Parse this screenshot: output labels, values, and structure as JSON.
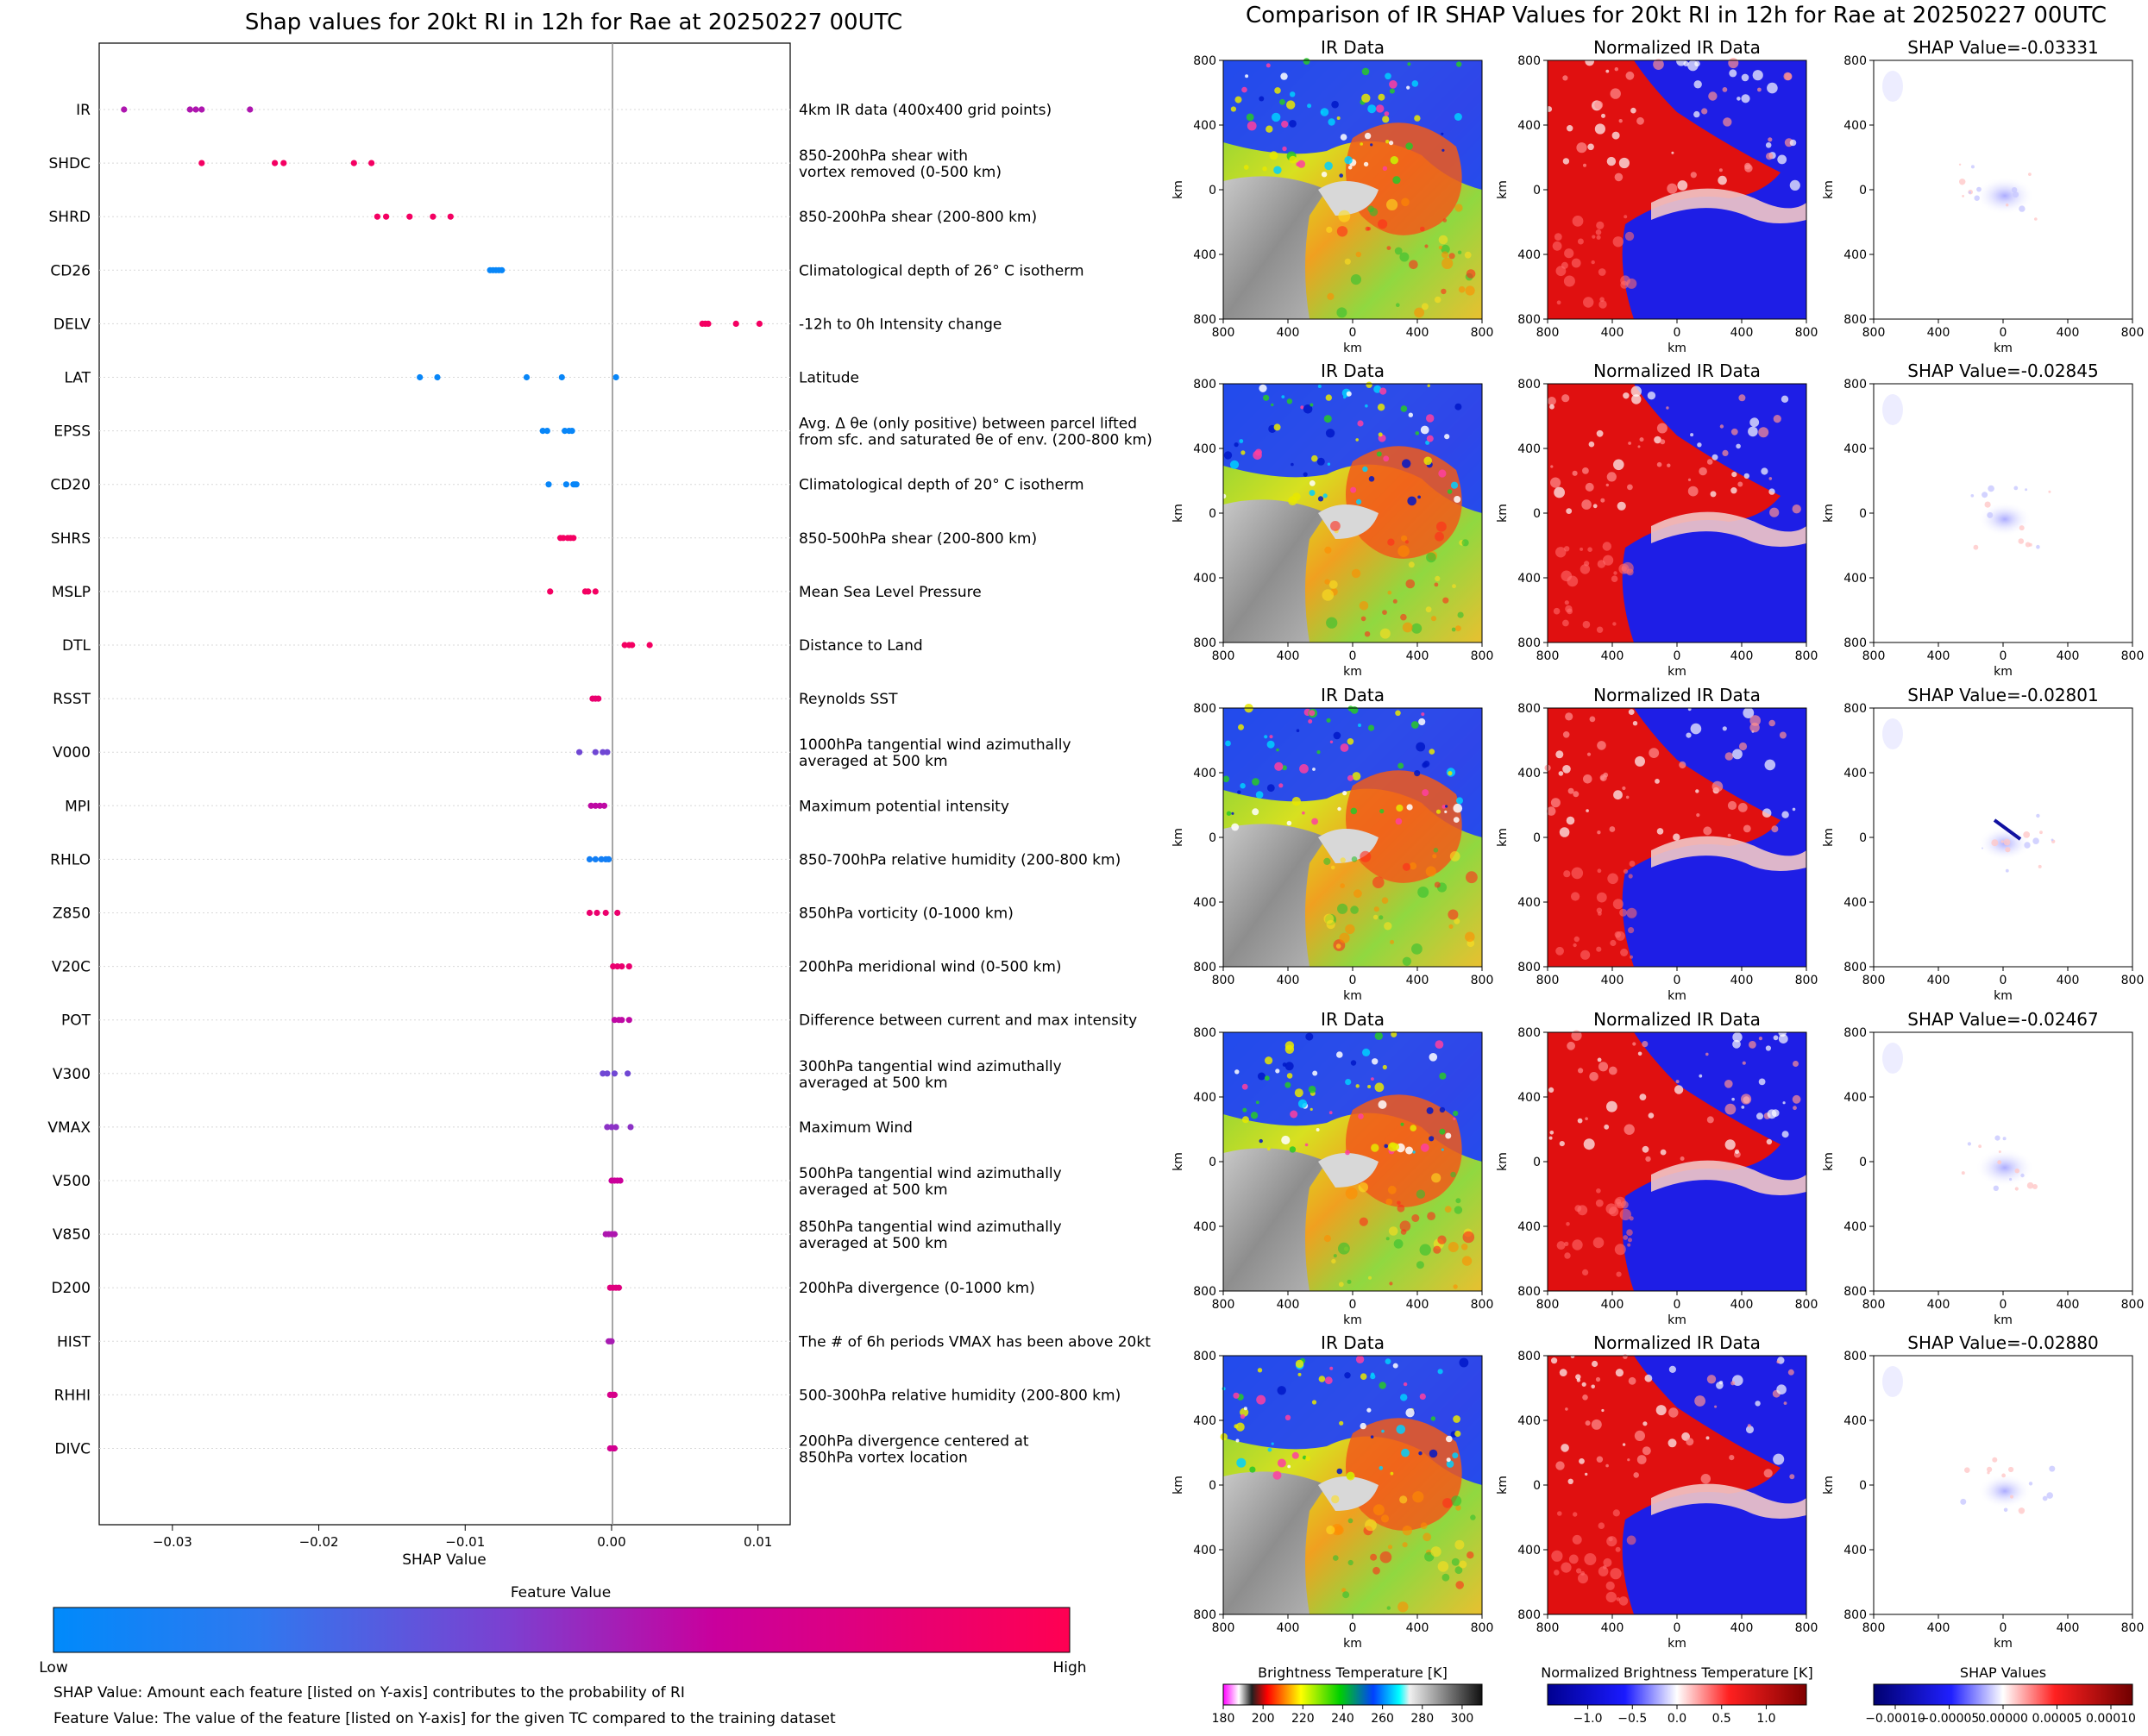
{
  "chart_data": [
    {
      "type": "scatter",
      "title": "Shap values for 20kt RI in 12h for Rae at 20250227 00UTC",
      "xlabel": "SHAP Value",
      "xlim": [
        -0.035,
        0.0122
      ],
      "xticks": [
        -0.03,
        -0.02,
        -0.01,
        0.0,
        0.01
      ],
      "xtick_labels": [
        "−0.03",
        "−0.02",
        "−0.01",
        "0.00",
        "0.01"
      ],
      "grid": "horizontal dotted",
      "features": [
        {
          "name": "IR",
          "description": "4km IR data (400x400 grid points)",
          "shap": [
            -0.0333,
            -0.0288,
            -0.0284,
            -0.028,
            -0.0247
          ],
          "values": [
            0.55,
            0.55,
            0.55,
            0.55,
            0.55
          ]
        },
        {
          "name": "SHDC",
          "description": "850-200hPa shear with\nvortex removed (0-500 km)",
          "shap": [
            -0.028,
            -0.023,
            -0.0224,
            -0.0176,
            -0.0164
          ],
          "values": [
            0.93,
            0.93,
            0.93,
            0.93,
            0.93
          ]
        },
        {
          "name": "SHRD",
          "description": "850-200hPa shear (200-800 km)",
          "shap": [
            -0.016,
            -0.0154,
            -0.0138,
            -0.0122,
            -0.011
          ],
          "values": [
            0.93,
            0.93,
            0.93,
            0.93,
            0.93
          ]
        },
        {
          "name": "CD26",
          "description": "Climatological depth of 26° C isotherm",
          "shap": [
            -0.0083,
            -0.0081,
            -0.0079,
            -0.0077,
            -0.0075
          ],
          "values": [
            0.02,
            0.02,
            0.02,
            0.02,
            0.02
          ]
        },
        {
          "name": "DELV",
          "description": "-12h to 0h Intensity change",
          "shap": [
            0.0062,
            0.0064,
            0.0066,
            0.0085,
            0.0101
          ],
          "values": [
            0.93,
            0.93,
            0.93,
            0.93,
            0.93
          ]
        },
        {
          "name": "LAT",
          "description": "Latitude",
          "shap": [
            -0.0131,
            -0.0119,
            -0.0058,
            -0.0034,
            0.0003
          ],
          "values": [
            0.02,
            0.02,
            0.02,
            0.02,
            0.02
          ]
        },
        {
          "name": "EPSS",
          "description": "Avg. Δ θe (only positive) between parcel lifted\nfrom sfc. and saturated θe of env. (200-800 km)",
          "shap": [
            -0.0047,
            -0.0044,
            -0.0032,
            -0.0029,
            -0.0027
          ],
          "values": [
            0.02,
            0.02,
            0.02,
            0.02,
            0.02
          ]
        },
        {
          "name": "CD20",
          "description": "Climatological depth of 20° C isotherm",
          "shap": [
            -0.0043,
            -0.0031,
            -0.0026,
            -0.0025,
            -0.0024
          ],
          "values": [
            0.02,
            0.02,
            0.02,
            0.02,
            0.02
          ]
        },
        {
          "name": "SHRS",
          "description": "850-500hPa shear (200-800 km)",
          "shap": [
            -0.0035,
            -0.0033,
            -0.003,
            -0.0028,
            -0.0026
          ],
          "values": [
            0.93,
            0.93,
            0.93,
            0.93,
            0.93
          ]
        },
        {
          "name": "MSLP",
          "description": "Mean Sea Level Pressure",
          "shap": [
            -0.0042,
            -0.0018,
            -0.0016,
            -0.0011
          ],
          "values": [
            0.93,
            0.93,
            0.93,
            0.93
          ]
        },
        {
          "name": "DTL",
          "description": "Distance to Land",
          "shap": [
            0.0009,
            0.0012,
            0.0014,
            0.0026
          ],
          "values": [
            0.93,
            0.93,
            0.93,
            0.93
          ]
        },
        {
          "name": "RSST",
          "description": "Reynolds SST",
          "shap": [
            -0.0013,
            -0.0011,
            -0.0009
          ],
          "values": [
            0.87,
            0.87,
            0.87
          ]
        },
        {
          "name": "V000",
          "description": "1000hPa tangential wind azimuthally\naveraged at 500 km",
          "shap": [
            -0.0022,
            -0.0011,
            -0.0006,
            -0.0003
          ],
          "values": [
            0.3,
            0.3,
            0.3,
            0.3
          ]
        },
        {
          "name": "MPI",
          "description": "Maximum potential intensity",
          "shap": [
            -0.0014,
            -0.0011,
            -0.0008,
            -0.0005
          ],
          "values": [
            0.62,
            0.62,
            0.62,
            0.62
          ]
        },
        {
          "name": "RHLO",
          "description": "850-700hPa relative humidity (200-800 km)",
          "shap": [
            -0.0015,
            -0.0011,
            -0.0007,
            -0.0004,
            -0.0002
          ],
          "values": [
            0.05,
            0.05,
            0.05,
            0.05,
            0.05
          ]
        },
        {
          "name": "Z850",
          "description": "850hPa vorticity (0-1000 km)",
          "shap": [
            -0.0015,
            -0.001,
            -0.0004,
            0.0004
          ],
          "values": [
            0.88,
            0.88,
            0.88,
            0.88
          ]
        },
        {
          "name": "V20C",
          "description": "200hPa meridional wind (0-500 km)",
          "shap": [
            0.0001,
            0.0004,
            0.0007,
            0.0012
          ],
          "values": [
            0.87,
            0.87,
            0.87,
            0.87
          ]
        },
        {
          "name": "POT",
          "description": "Difference between current and max intensity",
          "shap": [
            0.0002,
            0.0005,
            0.0007,
            0.0012
          ],
          "values": [
            0.62,
            0.62,
            0.62,
            0.62
          ]
        },
        {
          "name": "V300",
          "description": "300hPa tangential wind azimuthally\naveraged at 500 km",
          "shap": [
            -0.0006,
            -0.0003,
            0.0002,
            0.0011
          ],
          "values": [
            0.3,
            0.3,
            0.3,
            0.3
          ]
        },
        {
          "name": "VMAX",
          "description": "Maximum Wind",
          "shap": [
            -0.0003,
            0.0,
            0.0003,
            0.0013
          ],
          "values": [
            0.4,
            0.4,
            0.4,
            0.4
          ]
        },
        {
          "name": "V500",
          "description": "500hPa tangential wind azimuthally\naveraged at 500 km",
          "shap": [
            0.0,
            0.0002,
            0.0004,
            0.0006
          ],
          "values": [
            0.68,
            0.68,
            0.68,
            0.68
          ]
        },
        {
          "name": "V850",
          "description": "850hPa tangential wind azimuthally\naveraged at 500 km",
          "shap": [
            -0.0004,
            -0.0002,
            0.0,
            0.0002
          ],
          "values": [
            0.55,
            0.55,
            0.55,
            0.55
          ]
        },
        {
          "name": "D200",
          "description": "200hPa divergence (0-1000 km)",
          "shap": [
            -0.0001,
            0.0001,
            0.0003,
            0.0005
          ],
          "values": [
            0.8,
            0.8,
            0.8,
            0.8
          ]
        },
        {
          "name": "HIST",
          "description": "The # of 6h periods VMAX has been above 20kt",
          "shap": [
            -0.0002,
            -0.0001,
            0.0
          ],
          "values": [
            0.52,
            0.52,
            0.52
          ]
        },
        {
          "name": "RHHI",
          "description": "500-300hPa relative humidity (200-800 km)",
          "shap": [
            -0.0001,
            0.0001,
            0.0002
          ],
          "values": [
            0.75,
            0.75,
            0.75
          ]
        },
        {
          "name": "DIVC",
          "description": "200hPa divergence centered at\n850hPa vortex location",
          "shap": [
            -0.0001,
            0.0001,
            0.0002
          ],
          "values": [
            0.72,
            0.72,
            0.72
          ]
        }
      ],
      "colorbar": {
        "title": "Feature Value",
        "low_label": "Low",
        "high_label": "High",
        "colors": [
          "#008afb",
          "#7d3fd0",
          "#c9009d",
          "#ff0052"
        ]
      },
      "notes": [
        "SHAP Value: Amount each feature [listed on Y-axis] contributes to the probability of RI",
        "Feature Value: The value of the feature [listed on Y-axis] for the given TC compared to the training dataset"
      ]
    },
    {
      "type": "heatmap",
      "title": "Comparison of IR SHAP Values for 20kt RI in 12h for Rae at 20250227 00UTC",
      "column_titles": [
        "IR Data",
        "Normalized IR Data"
      ],
      "shap_panel_titles": [
        "SHAP Value=-0.03331",
        "SHAP Value=-0.02845",
        "SHAP Value=-0.02801",
        "SHAP Value=-0.02467",
        "SHAP Value=-0.02880"
      ],
      "axis_label": "km",
      "ticks": [
        "800",
        "400",
        "0",
        "400",
        "800"
      ],
      "colorbars": [
        {
          "title": "Brightness Temperature [K]",
          "ticks": [
            "180",
            "200",
            "220",
            "240",
            "260",
            "280",
            "300"
          ],
          "range": [
            180,
            310
          ]
        },
        {
          "title": "Normalized Brightness Temperature [K]",
          "ticks": [
            "−1.0",
            "−0.5",
            "0.0",
            "0.5",
            "1.0"
          ],
          "range": [
            -1.45,
            1.45
          ]
        },
        {
          "title": "SHAP Values",
          "ticks": [
            "−0.00010",
            "−0.00005",
            "0.00000",
            "0.00005",
            "0.00010"
          ],
          "range": [
            -0.00012,
            0.00012
          ]
        }
      ]
    }
  ]
}
